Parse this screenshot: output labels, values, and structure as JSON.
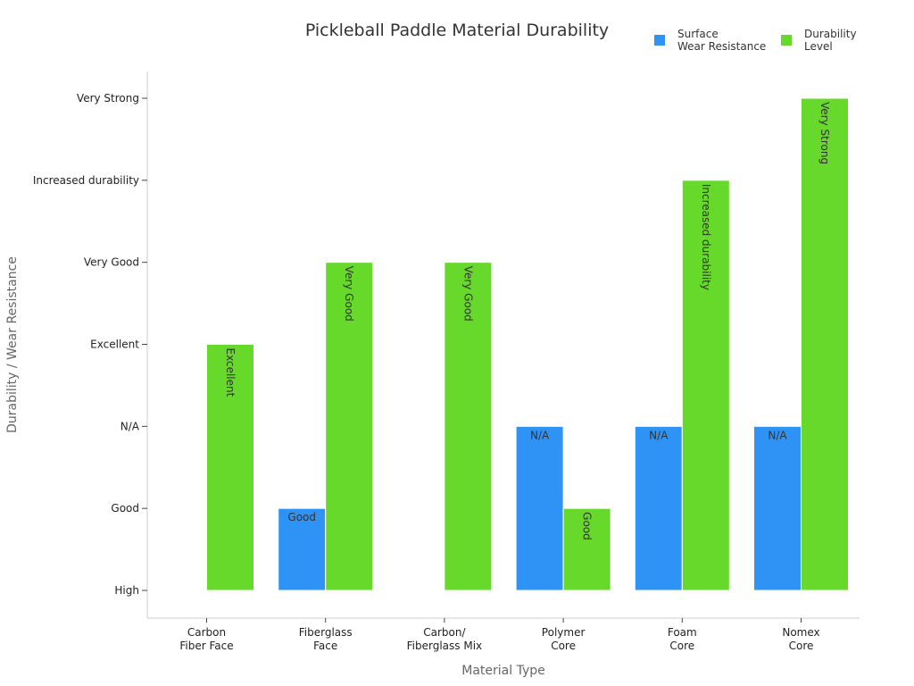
{
  "chart_data": {
    "type": "bar",
    "title": "Pickleball Paddle Material Durability",
    "xlabel": "Material Type",
    "ylabel": "Durability / Wear Resistance",
    "y_levels": [
      "High",
      "Good",
      "N/A",
      "Excellent",
      "Very Good",
      "Increased durability",
      "Very Strong"
    ],
    "ylim": [
      0,
      6
    ],
    "grid": false,
    "legend_position": "top-right",
    "categories": [
      [
        "Carbon",
        "Fiber Face"
      ],
      [
        "Fiberglass",
        "Face"
      ],
      [
        "Carbon/",
        "Fiberglass Mix"
      ],
      [
        "Polymer",
        "Core"
      ],
      [
        "Foam",
        "Core"
      ],
      [
        "Nomex",
        "Core"
      ]
    ],
    "series": [
      {
        "name": [
          "Surface",
          "Wear Resistance"
        ],
        "color": "#2f92f5",
        "values": [
          null,
          1,
          null,
          2,
          2,
          2
        ],
        "labels": [
          "",
          "Good",
          "",
          "N/A",
          "N/A",
          "N/A"
        ],
        "label_orientation": "horizontal"
      },
      {
        "name": [
          "Durability",
          "Level"
        ],
        "color": "#66d92a",
        "values": [
          3,
          4,
          4,
          1,
          5,
          6
        ],
        "labels": [
          "Excellent",
          "Very Good",
          "Very Good",
          "Good",
          "Increased durability",
          "Very Strong"
        ],
        "label_orientation": "auto"
      }
    ]
  }
}
